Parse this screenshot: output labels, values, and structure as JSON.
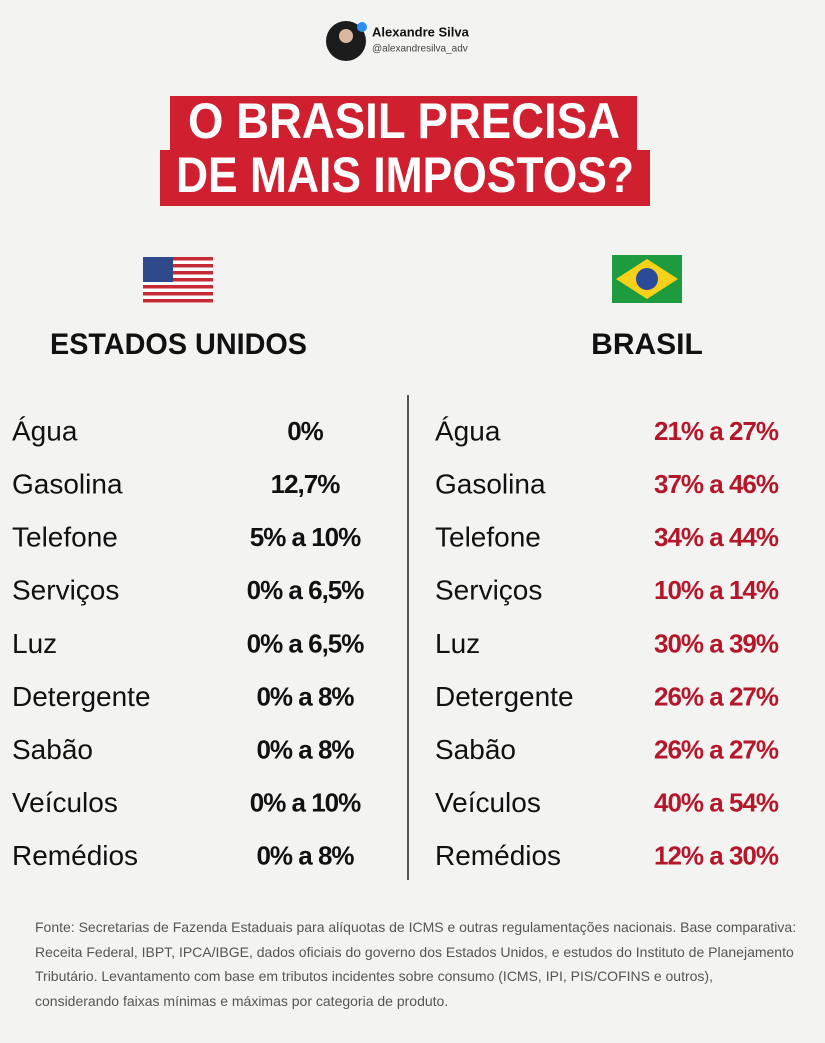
{
  "header": {
    "name": "Alexandre Silva",
    "handle": "@alexandresilva_adv"
  },
  "title": {
    "lines": [
      "O BRASIL PRECISA",
      "DE MAIS IMPOSTOS?"
    ]
  },
  "columns": [
    {
      "country": "ESTADOS UNIDOS",
      "rows": [
        {
          "label": "Água",
          "value": "0%"
        },
        {
          "label": "Gasolina",
          "value": "12,7%"
        },
        {
          "label": "Telefone",
          "value": "5% a 10%"
        },
        {
          "label": "Serviços",
          "value": "0% a 6,5%"
        },
        {
          "label": "Luz",
          "value": "0% a 6,5%"
        },
        {
          "label": "Detergente",
          "value": "0% a 8%"
        },
        {
          "label": "Sabão",
          "value": "0% a 8%"
        },
        {
          "label": "Veículos",
          "value": "0% a 10%"
        },
        {
          "label": "Remédios",
          "value": "0% a 8%"
        }
      ]
    },
    {
      "country": "BRASIL",
      "rows": [
        {
          "label": "Água",
          "value": "21% a 27%"
        },
        {
          "label": "Gasolina",
          "value": "37% a 46%"
        },
        {
          "label": "Telefone",
          "value": "34% a 44%"
        },
        {
          "label": "Serviços",
          "value": "10% a 14%"
        },
        {
          "label": "Luz",
          "value": "30% a 39%"
        },
        {
          "label": "Detergente",
          "value": "26% a 27%"
        },
        {
          "label": "Sabão",
          "value": "26% a 27%"
        },
        {
          "label": "Veículos",
          "value": "40% a 54%"
        },
        {
          "label": "Remédios",
          "value": "12% a 30%"
        }
      ]
    }
  ],
  "footer": {
    "source": "Fonte: Secretarias de Fazenda Estaduais para alíquotas de ICMS e outras regulamentações nacionais.  Base comparativa: Receita Federal, IBPT, IPCA/IBGE, dados oficiais do governo dos Estados Unidos, e estudos do Instituto de Planejamento Tributário. Levantamento com base em tributos incidentes sobre consumo (ICMS, IPI, PIS/COFINS e outros), considerando faixas mínimas e máximas por categoria de produto."
  }
}
